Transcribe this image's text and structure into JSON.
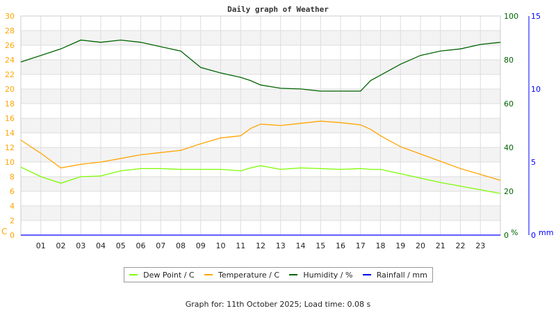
{
  "chart_data": {
    "type": "line",
    "title": "Daily graph of Weather",
    "x_ticks": [
      "01",
      "02",
      "03",
      "04",
      "05",
      "06",
      "07",
      "08",
      "09",
      "10",
      "11",
      "12",
      "13",
      "14",
      "15",
      "16",
      "17",
      "18",
      "19",
      "20",
      "21",
      "22",
      "23"
    ],
    "xlim": [
      0,
      24
    ],
    "axes": {
      "left": {
        "unit": "C",
        "ylim": [
          0,
          30
        ],
        "ticks": [
          0,
          2,
          4,
          6,
          8,
          10,
          12,
          14,
          16,
          18,
          20,
          22,
          24,
          26,
          28,
          30
        ],
        "color": "#ffa500"
      },
      "right1": {
        "unit": "%",
        "ylim": [
          0,
          100
        ],
        "ticks": [
          0,
          20,
          40,
          60,
          80,
          100
        ],
        "color": "#006400"
      },
      "right2": {
        "unit": "mm",
        "ylim": [
          0,
          15
        ],
        "ticks": [
          0,
          5,
          10,
          15
        ],
        "color": "#0000ff"
      }
    },
    "grid": true,
    "legend_placement": "bottom",
    "x": [
      0,
      1,
      2,
      3,
      4,
      5,
      6,
      7,
      8,
      9,
      10,
      11,
      11.5,
      12,
      13,
      14,
      15,
      16,
      17,
      17.5,
      18,
      19,
      20,
      21,
      22,
      23,
      24
    ],
    "series": [
      {
        "name": "Dew Point / C",
        "axis": "left",
        "color": "#7cfc00",
        "values": [
          9.3,
          8.0,
          7.1,
          8.0,
          8.1,
          8.8,
          9.1,
          9.1,
          9.0,
          9.0,
          9.0,
          8.8,
          9.2,
          9.5,
          9.0,
          9.2,
          9.1,
          9.0,
          9.1,
          9.0,
          9.0,
          8.4,
          7.8,
          7.2,
          6.7,
          6.2,
          5.7
        ]
      },
      {
        "name": "Temperature / C",
        "axis": "left",
        "color": "#ffa500",
        "values": [
          13.0,
          11.2,
          9.2,
          9.7,
          10.0,
          10.5,
          11.0,
          11.3,
          11.6,
          12.5,
          13.3,
          13.6,
          14.6,
          15.2,
          15.0,
          15.3,
          15.6,
          15.4,
          15.1,
          14.5,
          13.6,
          12.1,
          11.1,
          10.1,
          9.1,
          8.3,
          7.5
        ]
      },
      {
        "name": "Humidity / %",
        "axis": "right1",
        "color": "#006400",
        "values": [
          79,
          82,
          85,
          89,
          88,
          89,
          88,
          86,
          84,
          76.5,
          74,
          72,
          70.5,
          68.5,
          67,
          66.7,
          65.7,
          65.7,
          65.7,
          70.5,
          73,
          78,
          82,
          84,
          85,
          87,
          88
        ]
      },
      {
        "name": "Rainfall / mm",
        "axis": "right2",
        "color": "#0000ff",
        "values": [
          0,
          0,
          0,
          0,
          0,
          0,
          0,
          0,
          0,
          0,
          0,
          0,
          0,
          0,
          0,
          0,
          0,
          0,
          0,
          0,
          0,
          0,
          0,
          0,
          0,
          0,
          0
        ]
      }
    ]
  },
  "footer": "Graph for: 11th October 2025; Load time: 0.08 s"
}
